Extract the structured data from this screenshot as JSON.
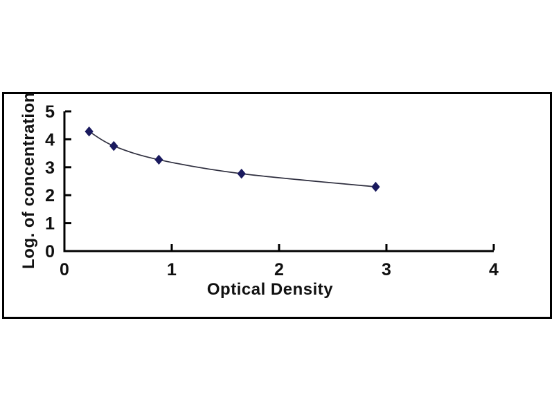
{
  "figure": {
    "background": "#ffffff",
    "frame_color": "#000000"
  },
  "chart_data": {
    "type": "line",
    "title": "",
    "xlabel": "Optical Density",
    "ylabel": "Log. of concentration",
    "x": [
      0.23,
      0.46,
      0.88,
      1.65,
      2.9
    ],
    "y": [
      4.28,
      3.76,
      3.27,
      2.77,
      2.3
    ],
    "xlim": [
      0,
      4
    ],
    "ylim": [
      0,
      5
    ],
    "x_ticks": [
      0,
      1,
      2,
      3,
      4
    ],
    "y_ticks": [
      0,
      1,
      2,
      3,
      4,
      5
    ],
    "grid": false,
    "legend": "none",
    "curve_style": "smooth",
    "marker": "diamond",
    "marker_color": "#1a1a5e",
    "line_color": "#303040",
    "axis_color": "#000000",
    "text_color": "#111111"
  }
}
